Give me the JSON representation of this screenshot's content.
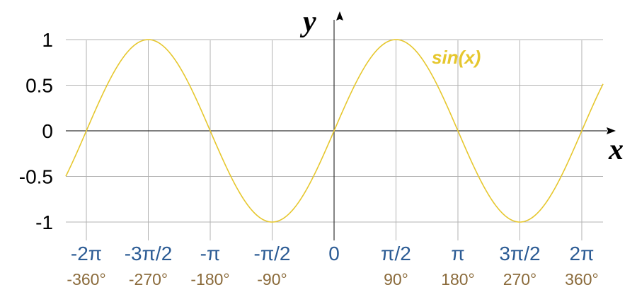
{
  "chart_data": {
    "type": "line",
    "x_unit": "radians",
    "xlim": [
      -6.8,
      7.2
    ],
    "ylim": [
      -1,
      1
    ],
    "grid": true,
    "xlabel": "x",
    "ylabel": "y",
    "series": [
      {
        "name": "sin(x)",
        "function": "sin(x)",
        "color": "#e6c72e"
      }
    ],
    "x_ticks": [
      {
        "value": -6.2832,
        "label": "-2π",
        "degrees": "-360°"
      },
      {
        "value": -4.7124,
        "label": "-3π/2",
        "degrees": "-270°"
      },
      {
        "value": -3.1416,
        "label": "-π",
        "degrees": "-180°"
      },
      {
        "value": -1.5708,
        "label": "-π/2",
        "degrees": "-90°"
      },
      {
        "value": 0,
        "label": "0",
        "degrees": ""
      },
      {
        "value": 1.5708,
        "label": "π/2",
        "degrees": "90°"
      },
      {
        "value": 3.1416,
        "label": "π",
        "degrees": "180°"
      },
      {
        "value": 4.7124,
        "label": "3π/2",
        "degrees": "270°"
      },
      {
        "value": 6.2832,
        "label": "2π",
        "degrees": "360°"
      }
    ],
    "y_ticks": [
      {
        "value": 1,
        "label": "1"
      },
      {
        "value": 0.5,
        "label": "0.5"
      },
      {
        "value": 0,
        "label": "0"
      },
      {
        "value": -0.5,
        "label": "-0.5"
      },
      {
        "value": -1,
        "label": "-1"
      }
    ],
    "colors": {
      "radian_labels": "#2b5b94",
      "degree_labels": "#8a6a3a",
      "curve": "#e6c72e"
    }
  }
}
